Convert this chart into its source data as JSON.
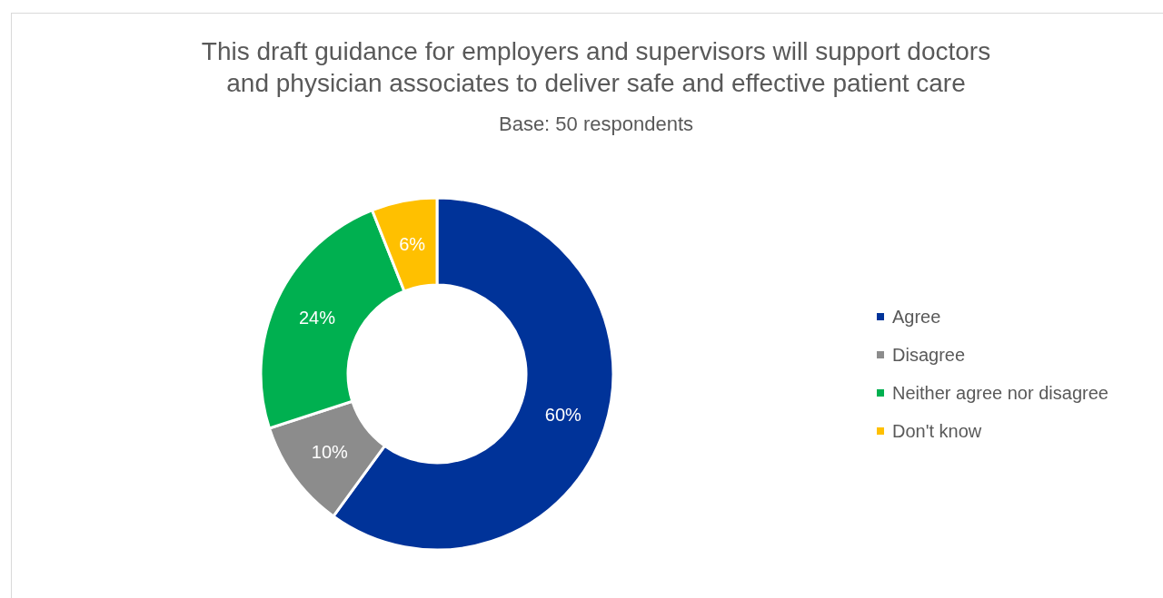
{
  "chart_data": {
    "type": "donut",
    "title": "This draft guidance for employers and supervisors will support doctors\nand physician associates to deliver safe and effective patient care",
    "subtitle": "Base: 50 respondents",
    "categories": [
      "Agree",
      "Disagree",
      "Neither agree nor disagree",
      "Don't know"
    ],
    "values": [
      60,
      10,
      24,
      6
    ],
    "colors": [
      "#003399",
      "#8c8c8c",
      "#00b050",
      "#ffc000"
    ],
    "value_labels": [
      "60%",
      "10%",
      "24%",
      "6%"
    ],
    "legend": "right"
  }
}
